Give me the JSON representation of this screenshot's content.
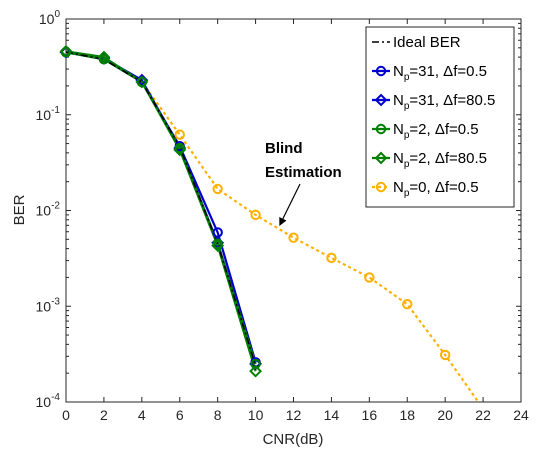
{
  "chart_data": {
    "type": "line",
    "xlabel": "CNR(dB)",
    "ylabel": "BER",
    "xlim": [
      0,
      24
    ],
    "ylim": [
      0.0001,
      1
    ],
    "yscale": "log",
    "grid": false,
    "legend_placement": "top-right",
    "x_ticks": [
      "0",
      "2",
      "4",
      "6",
      "8",
      "10",
      "12",
      "14",
      "16",
      "18",
      "20",
      "22",
      "24"
    ],
    "y_ticks": [
      {
        "base": "10",
        "exp": "0"
      },
      {
        "base": "10",
        "exp": "-1"
      },
      {
        "base": "10",
        "exp": "-2"
      },
      {
        "base": "10",
        "exp": "-3"
      },
      {
        "base": "10",
        "exp": "-4"
      }
    ],
    "annotation": {
      "line1": "Blind",
      "line2": "Estimation",
      "arrow_to": [
        11.3,
        0.0072
      ]
    },
    "series": [
      {
        "name": "Ideal BER",
        "name_main": "Ideal BER",
        "name_sub": "",
        "name_tail": "",
        "color": "#000000",
        "dash": "7,3,2,3",
        "marker": "none",
        "x": [
          0,
          2,
          4,
          6,
          8,
          10
        ],
        "y": [
          0.45,
          0.38,
          0.22,
          0.046,
          0.0045,
          0.00024
        ]
      },
      {
        "name": "Np=31, Δf=0.5",
        "name_main": "N",
        "name_sub": "p",
        "name_tail": "=31, Δf=0.5",
        "color": "#0000cc",
        "dash": "",
        "marker": "circle",
        "x": [
          0,
          2,
          4,
          6,
          8,
          10
        ],
        "y": [
          0.45,
          0.38,
          0.22,
          0.047,
          0.0059,
          0.00026
        ]
      },
      {
        "name": "Np=31, Δf=80.5",
        "name_main": "N",
        "name_sub": "p",
        "name_tail": "=31, Δf=80.5",
        "color": "#0000cc",
        "dash": "",
        "marker": "diamond",
        "x": [
          0,
          2,
          4,
          6,
          8,
          10
        ],
        "y": [
          0.45,
          0.39,
          0.23,
          0.045,
          0.0046,
          0.00025
        ]
      },
      {
        "name": "Np=2, Δf=0.5",
        "name_main": "N",
        "name_sub": "p",
        "name_tail": "=2, Δf=0.5",
        "color": "#008000",
        "dash": "",
        "marker": "circle",
        "x": [
          0,
          2,
          4,
          6,
          8,
          10
        ],
        "y": [
          0.45,
          0.38,
          0.22,
          0.045,
          0.0045,
          0.00025
        ]
      },
      {
        "name": "Np=2, Δf=80.5",
        "name_main": "N",
        "name_sub": "p",
        "name_tail": "=2, Δf=80.5",
        "color": "#008000",
        "dash": "",
        "marker": "diamond",
        "x": [
          0,
          2,
          4,
          6,
          8,
          10
        ],
        "y": [
          0.46,
          0.4,
          0.22,
          0.043,
          0.0043,
          0.00021
        ]
      },
      {
        "name": "Np=0, Δf=0.5",
        "name_main": "N",
        "name_sub": "p",
        "name_tail": "=0, Δf=0.5",
        "color": "#ffb000",
        "dash": "3,3",
        "marker": "circle",
        "x": [
          0,
          2,
          4,
          6,
          8,
          10,
          12,
          14,
          16,
          18,
          20,
          22
        ],
        "y": [
          0.45,
          0.38,
          0.22,
          0.062,
          0.0168,
          0.009,
          0.0052,
          0.0032,
          0.002,
          0.00105,
          0.00031,
          8.5e-05
        ]
      }
    ]
  }
}
